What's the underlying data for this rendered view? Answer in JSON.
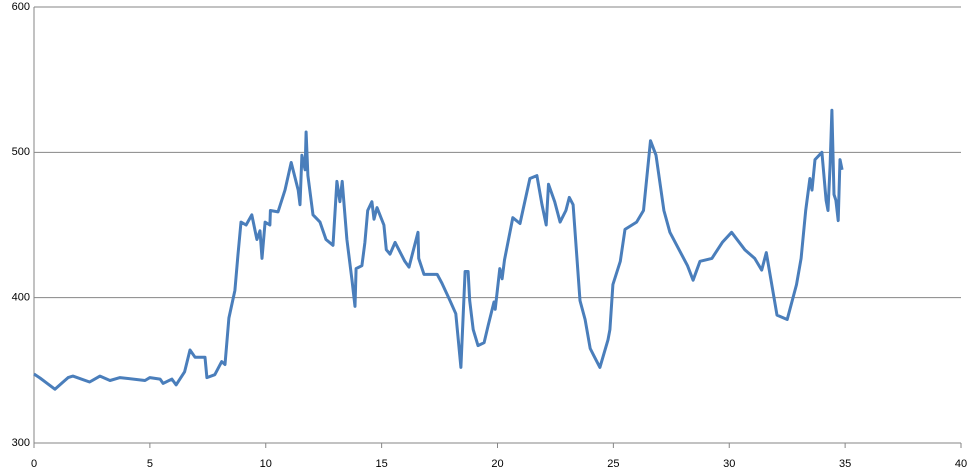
{
  "chart_data": {
    "type": "line",
    "color": "#4a7ebb",
    "grid": true,
    "xlim": [
      0,
      40
    ],
    "xticks": [
      0,
      5,
      10,
      15,
      20,
      25,
      30,
      35,
      40
    ],
    "ylim": [
      300,
      600
    ],
    "yticks": [
      300,
      400,
      500,
      600
    ],
    "x": [
      0,
      0.26,
      0.9,
      1.47,
      1.68,
      2.4,
      2.85,
      3.28,
      3.71,
      4.79,
      5.0,
      5.44,
      5.57,
      5.95,
      6.13,
      6.5,
      6.73,
      6.95,
      7.38,
      7.46,
      7.8,
      8.1,
      8.24,
      8.41,
      8.67,
      8.8,
      8.93,
      9.15,
      9.4,
      9.62,
      9.75,
      9.84,
      9.97,
      10.18,
      10.2,
      10.53,
      10.83,
      11.1,
      11.4,
      11.48,
      11.56,
      11.7,
      11.74,
      11.82,
      12.04,
      12.34,
      12.6,
      12.9,
      13.07,
      13.2,
      13.3,
      13.5,
      13.72,
      13.85,
      13.9,
      14.15,
      14.28,
      14.4,
      14.58,
      14.67,
      14.8,
      15.1,
      15.2,
      15.36,
      15.58,
      16.0,
      16.18,
      16.57,
      16.6,
      16.83,
      17.4,
      17.6,
      17.95,
      18.2,
      18.42,
      18.6,
      18.73,
      18.8,
      18.95,
      19.16,
      19.42,
      19.6,
      19.85,
      19.9,
      20.1,
      20.2,
      20.3,
      20.66,
      20.97,
      21.4,
      21.7,
      21.92,
      22.1,
      22.2,
      22.47,
      22.7,
      22.95,
      23.1,
      23.26,
      23.56,
      23.78,
      24.0,
      24.16,
      24.42,
      24.77,
      24.85,
      24.98,
      25.3,
      25.5,
      26.0,
      26.3,
      26.6,
      26.84,
      27.18,
      27.44,
      28.2,
      28.44,
      28.74,
      29.25,
      29.7,
      30.1,
      30.67,
      31.1,
      31.4,
      31.6,
      32.06,
      32.5,
      32.9,
      33.1,
      33.3,
      33.48,
      33.57,
      33.7,
      34.0,
      34.18,
      34.26,
      34.35,
      34.43,
      34.52,
      34.6,
      34.7,
      34.78,
      34.87
    ],
    "values": [
      347.5,
      344.7,
      337,
      345,
      346,
      342,
      346,
      343,
      345,
      343,
      345,
      344,
      341,
      344,
      340,
      349,
      364,
      359,
      359,
      345,
      347,
      356,
      354,
      386,
      405,
      429,
      452,
      450,
      457,
      440,
      446,
      427,
      452,
      450,
      460,
      459,
      474,
      493,
      474,
      464,
      498,
      488,
      514,
      484,
      457,
      452,
      440,
      436,
      480,
      466,
      480,
      440,
      412,
      394,
      420,
      422,
      438,
      460,
      466,
      454,
      462,
      450,
      433,
      430,
      438,
      425,
      421,
      445,
      427,
      416,
      416,
      410,
      398,
      389,
      352,
      418,
      418,
      398,
      378,
      367,
      369,
      381,
      397,
      392,
      420,
      413,
      426,
      455,
      451,
      482,
      484,
      464,
      450,
      478,
      466,
      452,
      460,
      469,
      464,
      398,
      385,
      365,
      360,
      352,
      371,
      378,
      409,
      425,
      447,
      452,
      460,
      508,
      498,
      460,
      445,
      422,
      412,
      425,
      427,
      438,
      445,
      433,
      427,
      419,
      431,
      388,
      385,
      409,
      427,
      460,
      482,
      474,
      495,
      500,
      467,
      460,
      491,
      529,
      471,
      467,
      453,
      495,
      488
    ]
  }
}
